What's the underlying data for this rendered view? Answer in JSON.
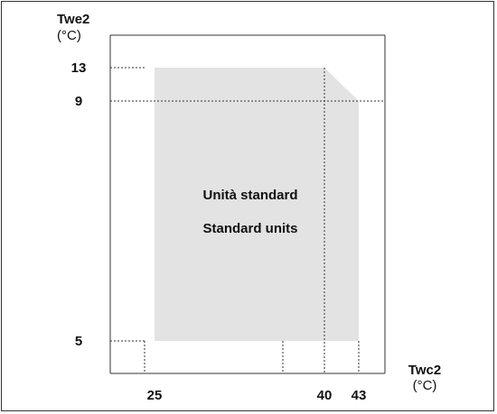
{
  "chart_data": {
    "type": "area",
    "title": "",
    "xlabel": "Twc2",
    "xunit": "(°C)",
    "ylabel": "Twe2",
    "yunit": "(°C)",
    "x_ticks": [
      "25",
      "40",
      "43"
    ],
    "y_ticks": [
      "13",
      "9",
      "5"
    ],
    "region_labels": [
      "Unità standard",
      "Standard units"
    ],
    "polygon": [
      [
        25,
        5
      ],
      [
        25,
        13
      ],
      [
        40,
        13
      ],
      [
        43,
        9
      ],
      [
        43,
        5
      ]
    ],
    "colors": {
      "region": "#e3e3e3",
      "axis": "#333333"
    }
  }
}
